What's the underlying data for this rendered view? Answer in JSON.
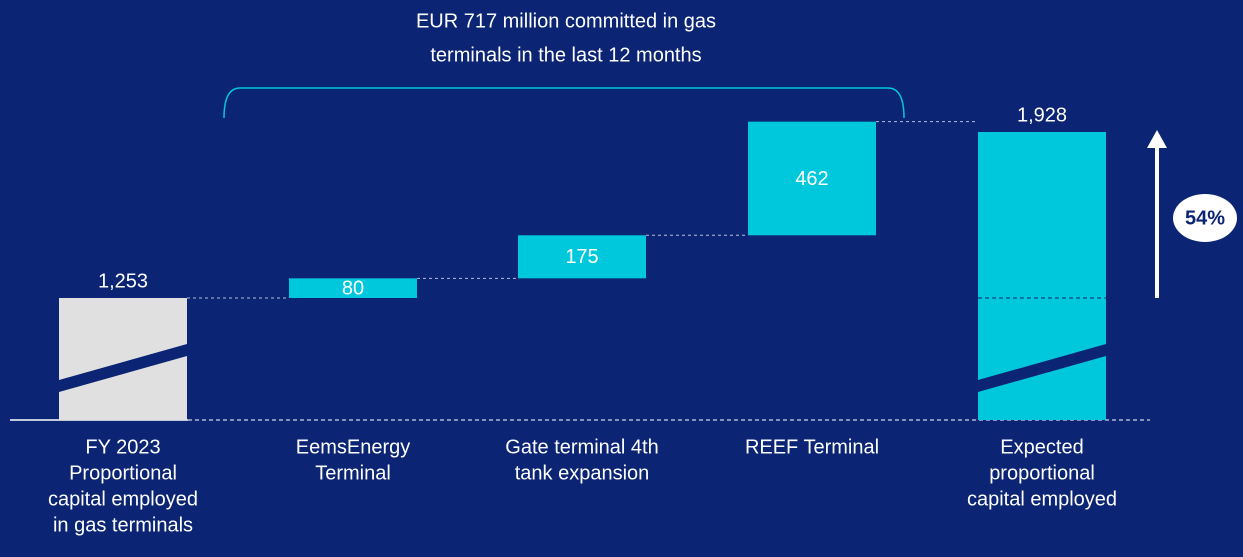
{
  "chart_data": {
    "type": "waterfall",
    "annotation": [
      "EUR 717 million committed in gas",
      "terminals in the last 12 months"
    ],
    "categories": [
      [
        "FY 2023",
        "Proportional",
        "capital employed",
        "in gas terminals"
      ],
      [
        "EemsEnergy",
        "Terminal"
      ],
      [
        "Gate terminal 4th",
        "tank expansion"
      ],
      [
        "REEF Terminal"
      ],
      [
        "Expected",
        "proportional",
        "capital employed"
      ]
    ],
    "values": [
      1253,
      80,
      175,
      462,
      1928
    ],
    "value_labels": [
      "1,253",
      "80",
      "175",
      "462",
      "1,928"
    ],
    "colors": [
      "#e0e0e0",
      "#00c8dc",
      "#00c8dc",
      "#00c8dc",
      "#00c8dc"
    ],
    "growth_label": "54%"
  }
}
